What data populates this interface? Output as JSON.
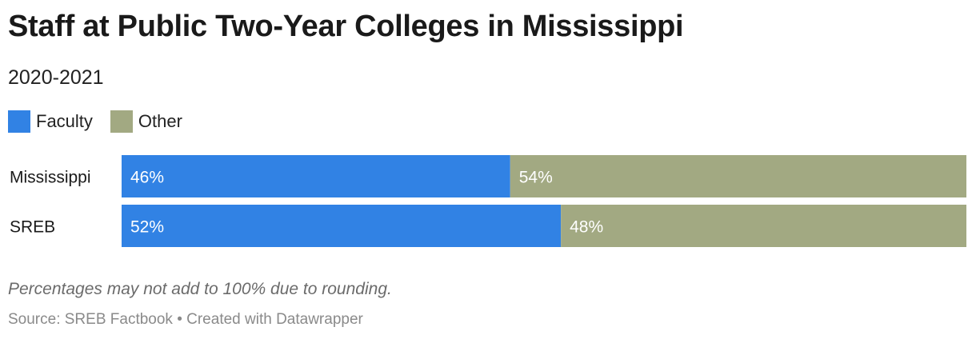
{
  "header": {
    "title": "Staff at Public Two-Year Colleges in Mississippi",
    "subtitle": "2020-2021"
  },
  "legend": [
    {
      "label": "Faculty",
      "color": "#3182e4"
    },
    {
      "label": "Other",
      "color": "#a2a982"
    }
  ],
  "chart_data": {
    "type": "bar",
    "orientation": "horizontal",
    "stacked": true,
    "categories": [
      "Mississippi",
      "SREB"
    ],
    "series": [
      {
        "name": "Faculty",
        "values": [
          46,
          52
        ],
        "labels": [
          "46%",
          "52%"
        ],
        "color": "#3182e4"
      },
      {
        "name": "Other",
        "values": [
          54,
          48
        ],
        "labels": [
          "54%",
          "48%"
        ],
        "color": "#a2a982"
      }
    ],
    "unit": "%",
    "xlim": [
      0,
      100
    ]
  },
  "footer": {
    "note": "Percentages may not add to 100% due to rounding.",
    "source": "Source: SREB Factbook • Created with Datawrapper"
  }
}
